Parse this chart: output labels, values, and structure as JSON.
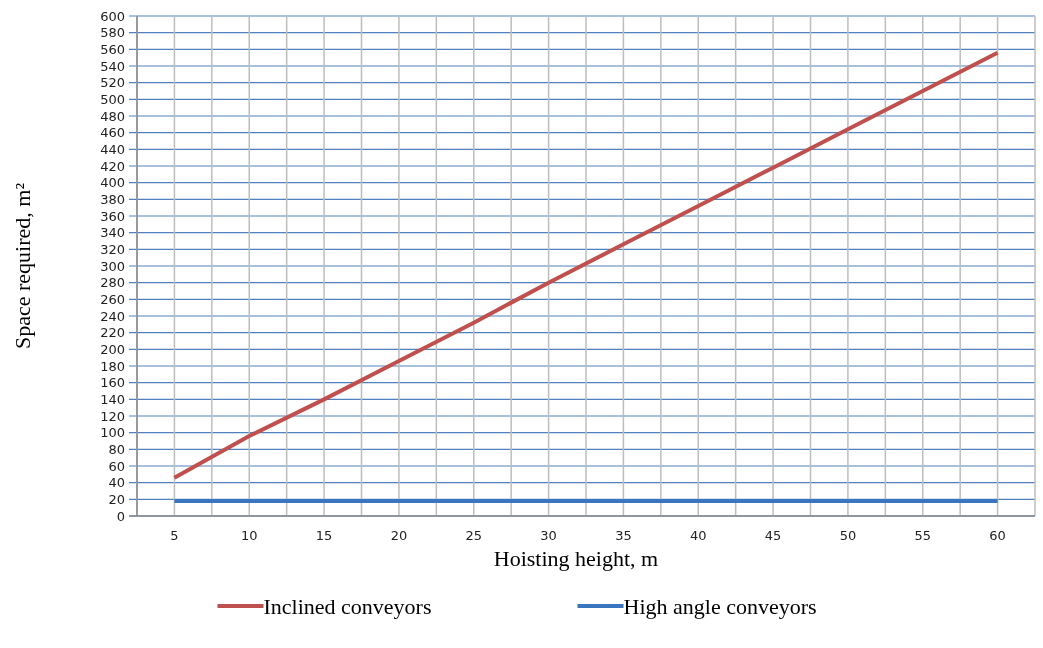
{
  "chart_data": {
    "type": "line",
    "xlabel": "Hoisting height, m",
    "ylabel": "Space required, m²",
    "categories": [
      "5",
      "10",
      "15",
      "20",
      "25",
      "30",
      "35",
      "40",
      "45",
      "50",
      "55",
      "60"
    ],
    "series": [
      {
        "name": "Inclined conveyors",
        "color": "#c0504d",
        "values": [
          46,
          96,
          140,
          186,
          232,
          280,
          326,
          372,
          418,
          464,
          510,
          556
        ]
      },
      {
        "name": "High angle conveyors",
        "color": "#3a75c0",
        "values": [
          18,
          18,
          18,
          18,
          18,
          18,
          18,
          18,
          18,
          18,
          18,
          18
        ]
      }
    ],
    "ylim": [
      0,
      600
    ],
    "yticks": [
      0,
      20,
      40,
      60,
      80,
      100,
      120,
      140,
      160,
      180,
      200,
      220,
      240,
      260,
      280,
      300,
      320,
      340,
      360,
      380,
      400,
      420,
      440,
      460,
      480,
      500,
      520,
      540,
      560,
      580,
      600
    ],
    "grid": true,
    "legend": "bottom",
    "marker": "none",
    "line_style": "solid"
  }
}
